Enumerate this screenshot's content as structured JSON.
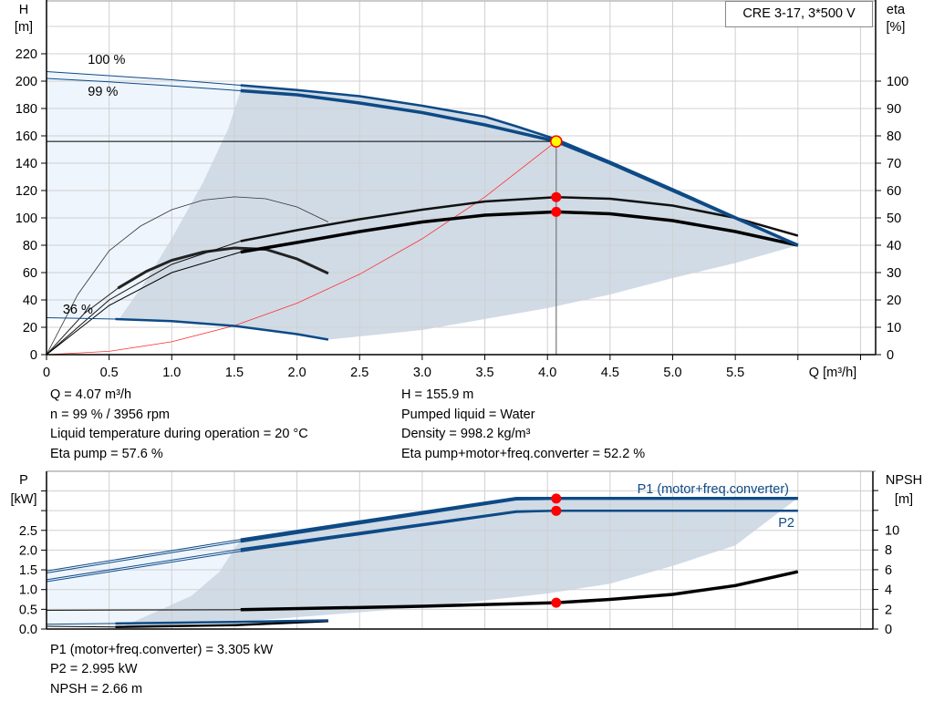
{
  "title_box": "CRE 3-17, 3*500 V",
  "info_top": {
    "left": [
      "Q = 4.07 m³/h",
      "n = 99 % / 3956 rpm",
      "Liquid temperature during operation = 20 °C",
      "Eta pump = 57.6 %"
    ],
    "right": [
      "H = 155.9 m",
      "Pumped liquid = Water",
      "Density = 998.2 kg/m³",
      "Eta pump+motor+freq.converter = 52.2 %"
    ]
  },
  "info_bottom": [
    "P1 (motor+freq.converter) = 3.305 kW",
    "P2 = 2.995 kW",
    "NPSH = 2.66 m"
  ],
  "colors": {
    "curve_blue": "#0d4a86",
    "envelope_dark": "#d0dbe6",
    "envelope_light": "#eef5fd",
    "grid": "#d0d0d0",
    "system_curve": "#ff3030",
    "duty_point": "#ffff00",
    "marker": "#ff0000"
  },
  "chart_data": [
    {
      "type": "line",
      "xlabel": "Q [m³/h]",
      "ylabel": "H\n[m]",
      "ylabel_line1": "H",
      "ylabel_line2": "[m]",
      "y2label_line1": "eta",
      "y2label_line2": "[%]",
      "xlim": [
        0,
        6.5
      ],
      "ylim": [
        0,
        260
      ],
      "y2lim": [
        0,
        130
      ],
      "x_ticks": [
        "0",
        "0.5",
        "1.0",
        "1.5",
        "2.0",
        "2.5",
        "3.0",
        "3.5",
        "4.0",
        "4.5",
        "5.0",
        "5.5"
      ],
      "x_tick_values": [
        0,
        0.5,
        1.0,
        1.5,
        2.0,
        2.5,
        3.0,
        3.5,
        4.0,
        4.5,
        5.0,
        5.5
      ],
      "y_ticks": [
        0,
        20,
        40,
        60,
        80,
        100,
        120,
        140,
        160,
        180,
        200,
        220
      ],
      "y2_ticks": [
        0,
        10,
        20,
        30,
        40,
        50,
        60,
        70,
        80,
        90,
        100
      ],
      "grid": true,
      "series": [
        {
          "name": "100 %",
          "axis": "H",
          "points": [
            [
              0,
              207
            ],
            [
              0.5,
              204
            ],
            [
              1.0,
              201
            ],
            [
              1.55,
              197
            ],
            [
              2,
              193.5
            ],
            [
              2.5,
              189
            ],
            [
              3,
              182
            ],
            [
              3.5,
              174
            ],
            [
              3.75,
              167
            ],
            [
              4.07,
              157.5
            ],
            [
              4.5,
              141
            ],
            [
              5,
              121
            ],
            [
              5.5,
              100.5
            ],
            [
              6,
              80
            ]
          ]
        },
        {
          "name": "99 %",
          "axis": "H",
          "points": [
            [
              0,
              202
            ],
            [
              0.5,
              199.5
            ],
            [
              1,
              196.5
            ],
            [
              1.55,
              193
            ],
            [
              2,
              190
            ],
            [
              2.5,
              184
            ],
            [
              3,
              177
            ],
            [
              3.5,
              168
            ],
            [
              4.07,
              155.9
            ],
            [
              4.5,
              140
            ],
            [
              5,
              120
            ],
            [
              5.5,
              100
            ],
            [
              6,
              80
            ]
          ]
        },
        {
          "name": "36 %",
          "axis": "H",
          "points": [
            [
              0,
              27
            ],
            [
              0.55,
              26
            ],
            [
              1,
              24.5
            ],
            [
              1.5,
              21
            ],
            [
              2,
              15
            ],
            [
              2.25,
              11
            ]
          ]
        },
        {
          "axis": "H",
          "kind": "system",
          "points": [
            [
              0,
              0
            ],
            [
              0.5,
              2.4
            ],
            [
              1,
              9.4
            ],
            [
              1.5,
              21.2
            ],
            [
              2,
              37.6
            ],
            [
              2.5,
              58.8
            ],
            [
              3,
              84.7
            ],
            [
              3.5,
              115.3
            ],
            [
              4.07,
              155.9
            ]
          ]
        },
        {
          "axis": "eta",
          "kind": "eta_pump",
          "points": [
            [
              0,
              0
            ],
            [
              0.5,
              20
            ],
            [
              1,
              33
            ],
            [
              1.55,
              41.5
            ],
            [
              2,
              45.5
            ],
            [
              2.5,
              49.5
            ],
            [
              3,
              53
            ],
            [
              3.5,
              56
            ],
            [
              4.07,
              57.6
            ],
            [
              4.5,
              57
            ],
            [
              5,
              54.5
            ],
            [
              5.5,
              50
            ],
            [
              6,
              43.5
            ]
          ]
        },
        {
          "axis": "eta",
          "kind": "eta_total",
          "points": [
            [
              0,
              0
            ],
            [
              0.5,
              18
            ],
            [
              1,
              30
            ],
            [
              1.55,
              37.5
            ],
            [
              2,
              41
            ],
            [
              2.5,
              45
            ],
            [
              3,
              48.5
            ],
            [
              3.5,
              51
            ],
            [
              4.07,
              52.2
            ],
            [
              4.5,
              51.5
            ],
            [
              5,
              49
            ],
            [
              5.5,
              45
            ],
            [
              6,
              40
            ]
          ]
        },
        {
          "axis": "eta",
          "kind": "eta_min_pump",
          "points": [
            [
              0,
              0
            ],
            [
              0.25,
              22
            ],
            [
              0.5,
              38
            ],
            [
              0.75,
              47
            ],
            [
              1,
              53
            ],
            [
              1.25,
              56.5
            ],
            [
              1.5,
              57.7
            ],
            [
              1.75,
              57
            ],
            [
              2,
              54
            ],
            [
              2.25,
              48.5
            ]
          ]
        },
        {
          "axis": "eta",
          "kind": "eta_min_total",
          "points": [
            [
              0,
              0
            ],
            [
              0.3,
              15
            ],
            [
              0.57,
              24.3
            ],
            [
              0.8,
              30.5
            ],
            [
              1,
              34.5
            ],
            [
              1.25,
              37.5
            ],
            [
              1.5,
              39
            ],
            [
              1.75,
              38.5
            ],
            [
              2,
              35
            ],
            [
              2.25,
              29.7
            ]
          ]
        }
      ],
      "envelope_light": [
        [
          0,
          207
        ],
        [
          1.55,
          197
        ],
        [
          1.55,
          193
        ],
        [
          1.45,
          165
        ],
        [
          1.25,
          126
        ],
        [
          1.0,
          85
        ],
        [
          0.8,
          55
        ],
        [
          0.58,
          26
        ],
        [
          0.55,
          26
        ],
        [
          0,
          27
        ]
      ],
      "envelope_dark": [
        [
          1.55,
          197
        ],
        [
          2,
          193.5
        ],
        [
          2.5,
          189
        ],
        [
          3,
          182
        ],
        [
          3.5,
          174
        ],
        [
          3.75,
          167
        ],
        [
          4.07,
          157.5
        ],
        [
          4.5,
          141
        ],
        [
          5,
          121
        ],
        [
          5.5,
          100.5
        ],
        [
          6,
          80
        ],
        [
          5.5,
          67
        ],
        [
          5,
          56
        ],
        [
          4.5,
          44
        ],
        [
          4,
          34
        ],
        [
          3.56,
          27
        ],
        [
          3,
          18
        ],
        [
          2.25,
          11
        ],
        [
          2,
          15
        ],
        [
          1.5,
          21
        ],
        [
          1,
          24.5
        ],
        [
          0.58,
          26
        ],
        [
          0.8,
          55
        ],
        [
          1.0,
          85
        ],
        [
          1.25,
          126
        ],
        [
          1.45,
          165
        ],
        [
          1.55,
          193
        ]
      ],
      "duty_point": {
        "Q": 4.07,
        "H": 155.9,
        "eta_pump": 57.6,
        "eta_total": 52.2
      }
    },
    {
      "type": "line",
      "ylabel_line1": "P",
      "ylabel_line2": "[kW]",
      "y2label_line1": "NPSH",
      "y2label_line2": "[m]",
      "xlim": [
        0,
        6.5
      ],
      "ylim": [
        0,
        4.0
      ],
      "y2lim": [
        0,
        15.9
      ],
      "y_ticks": [
        "0.0",
        "0.5",
        "1.0",
        "1.5",
        "2.0",
        "2.5"
      ],
      "y_tick_values": [
        0,
        0.5,
        1.0,
        1.5,
        2.0,
        2.5
      ],
      "y2_ticks": [
        0,
        2,
        4,
        6,
        8,
        10
      ],
      "grid": true,
      "series": [
        {
          "name": "P1 (motor+freq.converter)",
          "axis": "P",
          "points": [
            [
              0,
              1.47
            ],
            [
              1.55,
              2.27
            ],
            [
              3.75,
              3.32
            ],
            [
              6,
              3.32
            ]
          ]
        },
        {
          "axis": "P",
          "kind": "p1_99",
          "points": [
            [
              0,
              1.42
            ],
            [
              1.55,
              2.22
            ],
            [
              3.75,
              3.29
            ],
            [
              4.07,
              3.305
            ],
            [
              6,
              3.305
            ]
          ]
        },
        {
          "name": "P2",
          "axis": "P",
          "points": [
            [
              0,
              1.25
            ],
            [
              1.55,
              2.02
            ],
            [
              3.75,
              2.98
            ],
            [
              4.07,
              2.995
            ],
            [
              6,
              2.995
            ]
          ]
        },
        {
          "axis": "P",
          "kind": "p2_99",
          "points": [
            [
              0,
              1.2
            ],
            [
              1.55,
              1.97
            ],
            [
              3.75,
              2.96
            ],
            [
              4.07,
              2.995
            ]
          ]
        },
        {
          "axis": "P",
          "kind": "p1_min",
          "points": [
            [
              0,
              0.12
            ],
            [
              0.55,
              0.14
            ],
            [
              1.5,
              0.18
            ],
            [
              2.25,
              0.22
            ]
          ]
        },
        {
          "axis": "P",
          "kind": "p2_min",
          "points": [
            [
              0,
              0.07
            ],
            [
              0.55,
              0.05
            ],
            [
              1.5,
              0.1
            ],
            [
              2.25,
              0.2
            ]
          ]
        },
        {
          "axis": "NPSH",
          "kind": "npsh",
          "points": [
            [
              0,
              1.9
            ],
            [
              1.55,
              1.95
            ],
            [
              3,
              2.3
            ],
            [
              4.07,
              2.66
            ],
            [
              4.5,
              3.0
            ],
            [
              5,
              3.5
            ],
            [
              5.5,
              4.4
            ],
            [
              6,
              5.8
            ]
          ]
        }
      ],
      "envelope_light": [
        [
          0,
          1.47
        ],
        [
          1.55,
          2.27
        ],
        [
          1.38,
          1.45
        ],
        [
          1.16,
          0.85
        ],
        [
          0.89,
          0.46
        ],
        [
          0.6,
          0.05
        ],
        [
          0,
          0.1
        ]
      ],
      "envelope_dark": [
        [
          1.55,
          2.27
        ],
        [
          3.75,
          3.32
        ],
        [
          6,
          3.32
        ],
        [
          5.5,
          2.12
        ],
        [
          5,
          1.6
        ],
        [
          4.5,
          1.15
        ],
        [
          4,
          0.9
        ],
        [
          3,
          0.55
        ],
        [
          2,
          0.3
        ],
        [
          1.5,
          0.18
        ],
        [
          0.6,
          0.05
        ],
        [
          0.89,
          0.46
        ],
        [
          1.16,
          0.85
        ],
        [
          1.38,
          1.45
        ]
      ],
      "duty_point": {
        "Q": 4.07,
        "P1": 3.305,
        "P2": 2.995,
        "NPSH": 2.66
      }
    }
  ]
}
